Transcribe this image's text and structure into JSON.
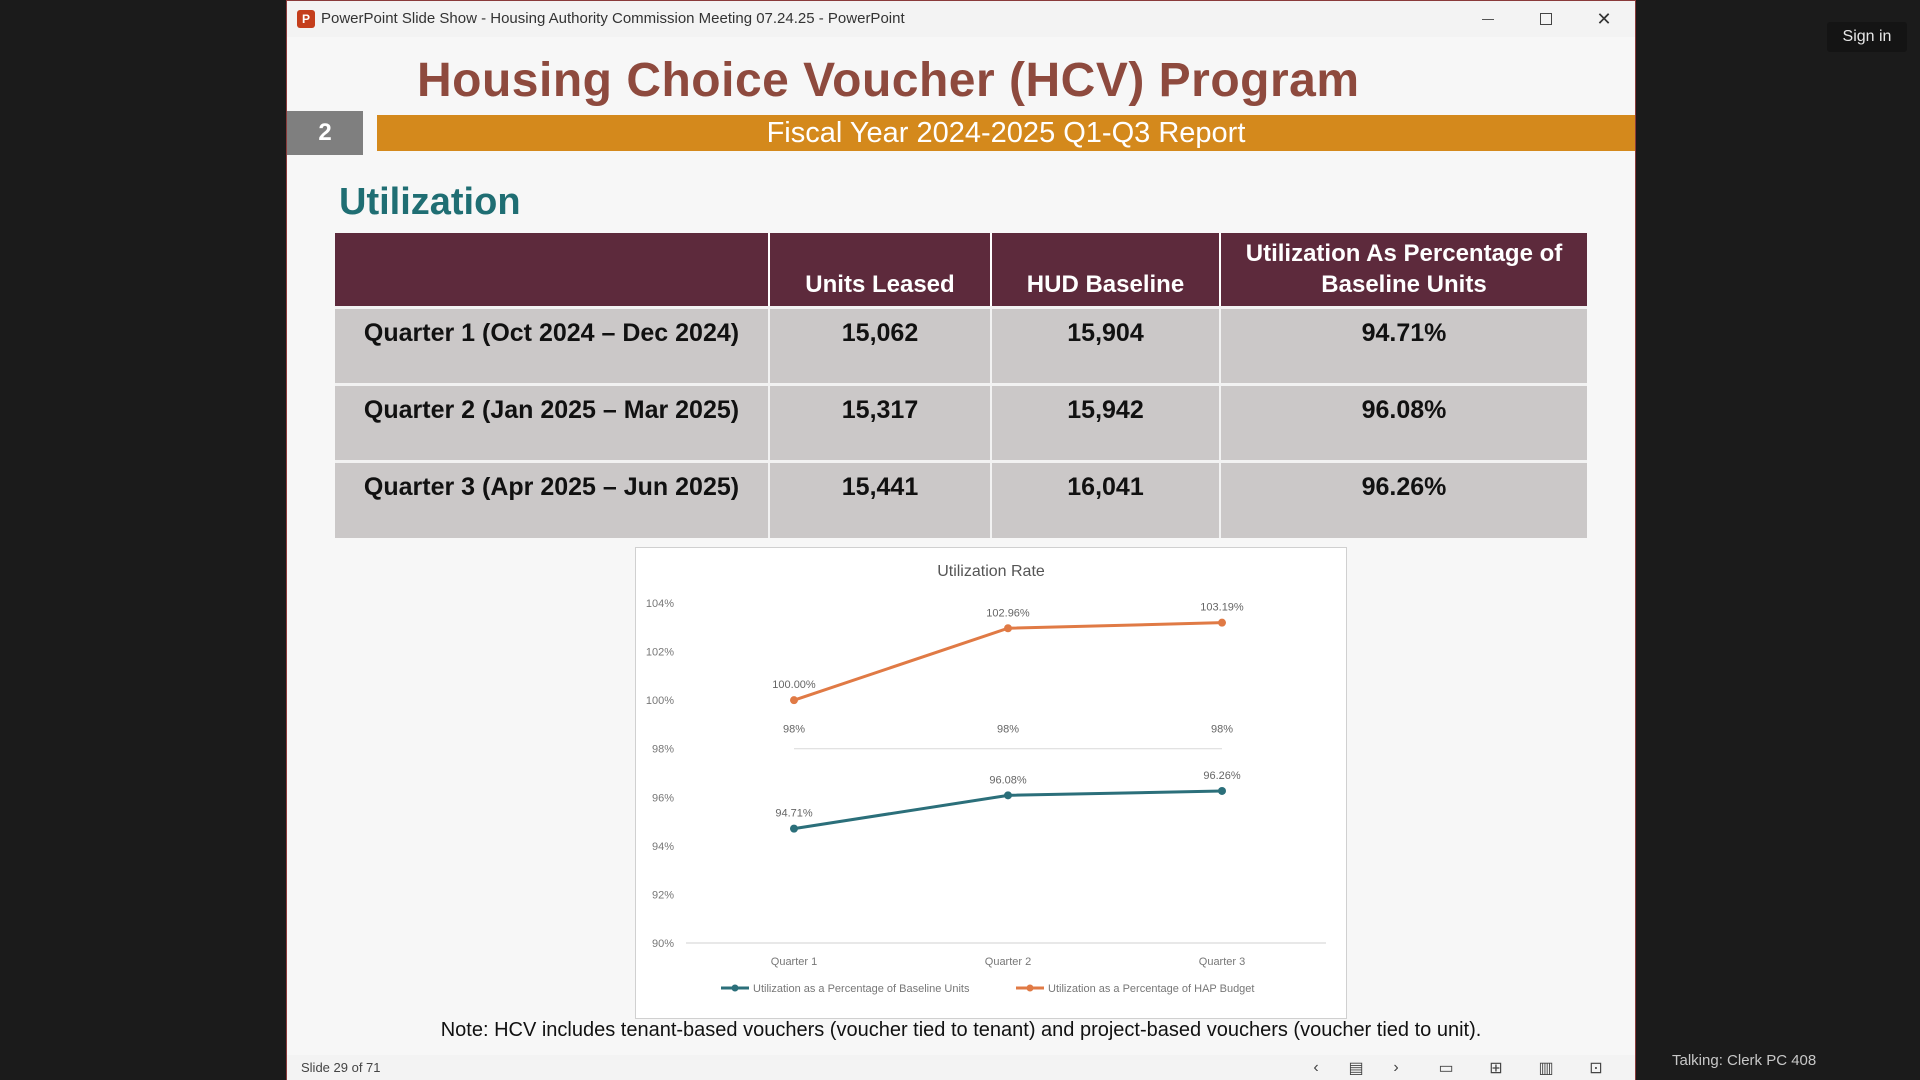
{
  "meeting": {
    "sign_in_label": "Sign in",
    "talking_text": "Talking: Clerk PC 408"
  },
  "window": {
    "title": "PowerPoint Slide Show  -  Housing Authority Commission Meeting 07.24.25 - PowerPoint",
    "app_icon_letter": "P"
  },
  "slide": {
    "title": "Housing Choice Voucher (HCV) Program",
    "number": "2",
    "subtitle": "Fiscal Year 2024-2025 Q1-Q3 Report",
    "section": "Utilization",
    "note": "Note: HCV includes tenant-based vouchers (voucher tied to tenant) and project-based vouchers (voucher tied to unit)."
  },
  "table": {
    "headers": [
      "",
      "Units Leased",
      "HUD Baseline",
      "Utilization As Percentage of Baseline Units"
    ],
    "rows": [
      [
        "Quarter 1 (Oct 2024 – Dec 2024)",
        "15,062",
        "15,904",
        "94.71%"
      ],
      [
        "Quarter 2 (Jan 2025 – Mar 2025)",
        "15,317",
        "15,942",
        "96.08%"
      ],
      [
        "Quarter 3 (Apr 2025 – Jun 2025)",
        "15,441",
        "16,041",
        "96.26%"
      ]
    ]
  },
  "chart_data": {
    "type": "line",
    "title": "Utilization Rate",
    "categories": [
      "Quarter 1",
      "Quarter 2",
      "Quarter 3"
    ],
    "y_ticks": [
      "90%",
      "92%",
      "94%",
      "96%",
      "98%",
      "100%",
      "102%",
      "104%"
    ],
    "ylim": [
      90,
      104
    ],
    "grid": false,
    "legend_position": "bottom",
    "series": [
      {
        "name": "Utilization as a Percentage of Baseline Units",
        "values": [
          94.71,
          96.08,
          96.26
        ],
        "labels": [
          "94.71%",
          "96.08%",
          "96.26%"
        ],
        "color": "#2b6f7a"
      },
      {
        "name": "Utilization as a Percentage of HAP Budget",
        "values": [
          100.0,
          102.96,
          103.19
        ],
        "labels": [
          "100.00%",
          "102.96%",
          "103.19%"
        ],
        "color": "#e07a45"
      },
      {
        "name": "",
        "values": [
          98,
          98,
          98
        ],
        "labels": [
          "98%",
          "98%",
          "98%"
        ],
        "color": "#d9d9d9"
      }
    ]
  },
  "statusbar": {
    "slide_count": "Slide 29 of 71",
    "icons": [
      "prev-icon",
      "slide-view-icon",
      "next-icon",
      "normal-view-icon",
      "slide-sorter-icon",
      "reading-view-icon",
      "slideshow-icon"
    ]
  }
}
